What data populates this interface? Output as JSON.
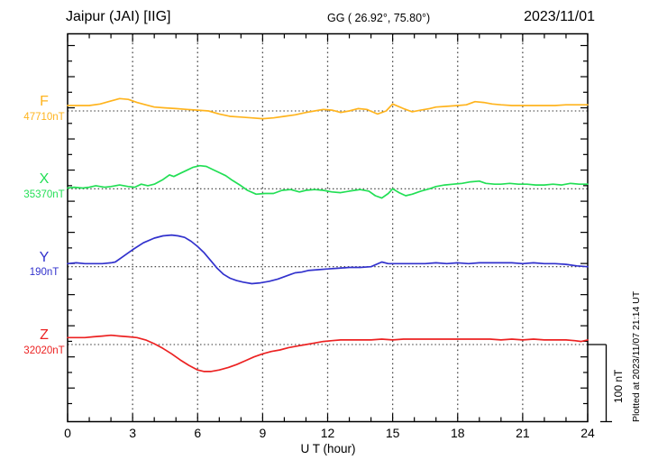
{
  "header": {
    "station": "Jaipur (JAI)  [IIG]",
    "coordinates": "GG ( 26.92°, 75.80°)",
    "date": "2023/11/01"
  },
  "xaxis": {
    "label": "U T (hour)",
    "ticks": [
      "0",
      "3",
      "6",
      "9",
      "12",
      "15",
      "18",
      "21",
      "24"
    ]
  },
  "scale_bar": {
    "label": "100 nT",
    "value_nT": 100
  },
  "footer_note": "Plotted at 2023/11/07 21:14 UT",
  "chart_data": {
    "type": "line",
    "title": "Jaipur (JAI) [IIG] magnetogram 2023/11/01",
    "xlabel": "U T (hour)",
    "x_range": [
      0,
      24
    ],
    "x_major_tick": 3,
    "x_minor_tick": 1,
    "grid": "vertical-dotted-every-3h",
    "y_scale": "100 nT per division, offsets in nT relative to each component baseline",
    "series": [
      {
        "name": "F",
        "baseline_label": "47710nT",
        "baseline_value_nT": 47710,
        "color": "#FFB41E",
        "points": [
          [
            0,
            7
          ],
          [
            0.5,
            7
          ],
          [
            1,
            7
          ],
          [
            1.5,
            9
          ],
          [
            2,
            13
          ],
          [
            2.4,
            16
          ],
          [
            2.8,
            15
          ],
          [
            3.2,
            11
          ],
          [
            3.6,
            8
          ],
          [
            4,
            5
          ],
          [
            4.5,
            4
          ],
          [
            5,
            3
          ],
          [
            5.5,
            2
          ],
          [
            6,
            1
          ],
          [
            6.5,
            0
          ],
          [
            7,
            -4
          ],
          [
            7.5,
            -7
          ],
          [
            8,
            -8
          ],
          [
            8.5,
            -9
          ],
          [
            9,
            -10
          ],
          [
            9.5,
            -9
          ],
          [
            10,
            -7
          ],
          [
            10.5,
            -5
          ],
          [
            11,
            -2
          ],
          [
            11.4,
            0
          ],
          [
            11.8,
            2
          ],
          [
            12.2,
            1
          ],
          [
            12.6,
            -2
          ],
          [
            13,
            0
          ],
          [
            13.4,
            3
          ],
          [
            13.8,
            2
          ],
          [
            14.3,
            -4
          ],
          [
            14.7,
            0
          ],
          [
            15,
            9
          ],
          [
            15.5,
            3
          ],
          [
            15.9,
            -1
          ],
          [
            16.3,
            1
          ],
          [
            16.7,
            3
          ],
          [
            17,
            5
          ],
          [
            17.5,
            6
          ],
          [
            18,
            7
          ],
          [
            18.4,
            8
          ],
          [
            18.8,
            12
          ],
          [
            19.2,
            11
          ],
          [
            19.6,
            9
          ],
          [
            20,
            8
          ],
          [
            20.5,
            7
          ],
          [
            21,
            7
          ],
          [
            21.5,
            7
          ],
          [
            22,
            7
          ],
          [
            22.5,
            7
          ],
          [
            23,
            8
          ],
          [
            23.5,
            8
          ],
          [
            24,
            8
          ]
        ]
      },
      {
        "name": "X",
        "baseline_label": "35370nT",
        "baseline_value_nT": 35370,
        "color": "#22DF55",
        "points": [
          [
            0,
            1
          ],
          [
            0.3,
            2
          ],
          [
            0.7,
            1
          ],
          [
            1,
            2
          ],
          [
            1.3,
            4
          ],
          [
            1.7,
            2
          ],
          [
            2,
            3
          ],
          [
            2.4,
            5
          ],
          [
            2.8,
            3
          ],
          [
            3.1,
            2
          ],
          [
            3.4,
            6
          ],
          [
            3.7,
            4
          ],
          [
            4,
            6
          ],
          [
            4.4,
            12
          ],
          [
            4.7,
            18
          ],
          [
            4.9,
            16
          ],
          [
            5.2,
            20
          ],
          [
            5.5,
            24
          ],
          [
            5.8,
            28
          ],
          [
            6.1,
            30
          ],
          [
            6.4,
            29
          ],
          [
            6.7,
            25
          ],
          [
            7,
            21
          ],
          [
            7.3,
            17
          ],
          [
            7.6,
            11
          ],
          [
            8,
            4
          ],
          [
            8.3,
            -2
          ],
          [
            8.7,
            -7
          ],
          [
            9.1,
            -6
          ],
          [
            9.5,
            -6
          ],
          [
            9.9,
            -2
          ],
          [
            10.3,
            -1
          ],
          [
            10.7,
            -4
          ],
          [
            11,
            -2
          ],
          [
            11.4,
            -1
          ],
          [
            11.8,
            -2
          ],
          [
            12.2,
            -4
          ],
          [
            12.6,
            -5
          ],
          [
            13,
            -3
          ],
          [
            13.5,
            -1
          ],
          [
            13.9,
            -3
          ],
          [
            14.2,
            -9
          ],
          [
            14.5,
            -12
          ],
          [
            14.8,
            -6
          ],
          [
            15,
            0
          ],
          [
            15.3,
            -5
          ],
          [
            15.6,
            -9
          ],
          [
            15.9,
            -7
          ],
          [
            16.3,
            -3
          ],
          [
            16.7,
            0
          ],
          [
            17,
            3
          ],
          [
            17.4,
            5
          ],
          [
            17.8,
            6
          ],
          [
            18.2,
            7
          ],
          [
            18.6,
            9
          ],
          [
            19,
            10
          ],
          [
            19.3,
            7
          ],
          [
            19.7,
            6
          ],
          [
            20,
            6
          ],
          [
            20.4,
            7
          ],
          [
            20.8,
            6
          ],
          [
            21.2,
            6
          ],
          [
            21.6,
            5
          ],
          [
            22,
            5
          ],
          [
            22.4,
            6
          ],
          [
            22.8,
            5
          ],
          [
            23.2,
            7
          ],
          [
            23.6,
            6
          ],
          [
            24,
            6
          ]
        ]
      },
      {
        "name": "Y",
        "baseline_label": "190nT",
        "baseline_value_nT": 190,
        "color": "#3232CD",
        "points": [
          [
            0,
            4
          ],
          [
            0.4,
            5
          ],
          [
            0.8,
            4
          ],
          [
            1.2,
            4
          ],
          [
            1.6,
            4
          ],
          [
            2,
            5
          ],
          [
            2.2,
            6
          ],
          [
            2.5,
            12
          ],
          [
            3,
            22
          ],
          [
            3.5,
            31
          ],
          [
            4,
            37
          ],
          [
            4.4,
            40
          ],
          [
            4.8,
            41
          ],
          [
            5.1,
            40
          ],
          [
            5.4,
            38
          ],
          [
            5.7,
            33
          ],
          [
            6,
            26
          ],
          [
            6.3,
            18
          ],
          [
            6.6,
            8
          ],
          [
            6.9,
            -2
          ],
          [
            7.2,
            -10
          ],
          [
            7.5,
            -15
          ],
          [
            7.8,
            -18
          ],
          [
            8.1,
            -20
          ],
          [
            8.5,
            -22
          ],
          [
            8.9,
            -21
          ],
          [
            9.3,
            -19
          ],
          [
            9.7,
            -16
          ],
          [
            10,
            -13
          ],
          [
            10.3,
            -10
          ],
          [
            10.5,
            -8
          ],
          [
            10.8,
            -7
          ],
          [
            11.1,
            -5
          ],
          [
            11.5,
            -4
          ],
          [
            12,
            -3
          ],
          [
            12.5,
            -2
          ],
          [
            13,
            -1
          ],
          [
            13.5,
            -1
          ],
          [
            14,
            0
          ],
          [
            14.5,
            6
          ],
          [
            14.8,
            4
          ],
          [
            15.2,
            4
          ],
          [
            15.6,
            4
          ],
          [
            16,
            4
          ],
          [
            16.5,
            4
          ],
          [
            17,
            5
          ],
          [
            17.5,
            4
          ],
          [
            18,
            5
          ],
          [
            18.5,
            4
          ],
          [
            19,
            5
          ],
          [
            19.5,
            5
          ],
          [
            20,
            5
          ],
          [
            20.5,
            5
          ],
          [
            21,
            4
          ],
          [
            21.5,
            5
          ],
          [
            22,
            4
          ],
          [
            22.5,
            4
          ],
          [
            23,
            3
          ],
          [
            23.5,
            1
          ],
          [
            24,
            0
          ]
        ]
      },
      {
        "name": "Z",
        "baseline_label": "32020nT",
        "baseline_value_nT": 32020,
        "color": "#EC2222",
        "points": [
          [
            0,
            9
          ],
          [
            0.4,
            9
          ],
          [
            0.8,
            9
          ],
          [
            1.2,
            10
          ],
          [
            1.6,
            11
          ],
          [
            2,
            12
          ],
          [
            2.4,
            11
          ],
          [
            2.8,
            10
          ],
          [
            3.2,
            9
          ],
          [
            3.6,
            6
          ],
          [
            4,
            1
          ],
          [
            4.4,
            -5
          ],
          [
            4.8,
            -12
          ],
          [
            5.2,
            -20
          ],
          [
            5.6,
            -27
          ],
          [
            6,
            -33
          ],
          [
            6.3,
            -35
          ],
          [
            6.6,
            -35
          ],
          [
            7,
            -33
          ],
          [
            7.4,
            -30
          ],
          [
            7.8,
            -26
          ],
          [
            8.2,
            -21
          ],
          [
            8.6,
            -16
          ],
          [
            9,
            -12
          ],
          [
            9.4,
            -9
          ],
          [
            9.8,
            -7
          ],
          [
            10.2,
            -4
          ],
          [
            10.6,
            -2
          ],
          [
            11,
            0
          ],
          [
            11.4,
            2
          ],
          [
            11.8,
            4
          ],
          [
            12.2,
            5
          ],
          [
            12.6,
            6
          ],
          [
            13,
            6
          ],
          [
            13.5,
            6
          ],
          [
            14,
            6
          ],
          [
            14.5,
            7
          ],
          [
            15,
            6
          ],
          [
            15.5,
            7
          ],
          [
            16,
            7
          ],
          [
            16.5,
            7
          ],
          [
            17,
            7
          ],
          [
            17.5,
            7
          ],
          [
            18,
            7
          ],
          [
            18.5,
            7
          ],
          [
            19,
            7
          ],
          [
            19.5,
            7
          ],
          [
            20,
            6
          ],
          [
            20.5,
            7
          ],
          [
            21,
            6
          ],
          [
            21.5,
            7
          ],
          [
            22,
            6
          ],
          [
            22.5,
            6
          ],
          [
            23,
            6
          ],
          [
            23.4,
            5
          ],
          [
            23.7,
            4
          ],
          [
            24,
            6
          ]
        ]
      }
    ]
  }
}
